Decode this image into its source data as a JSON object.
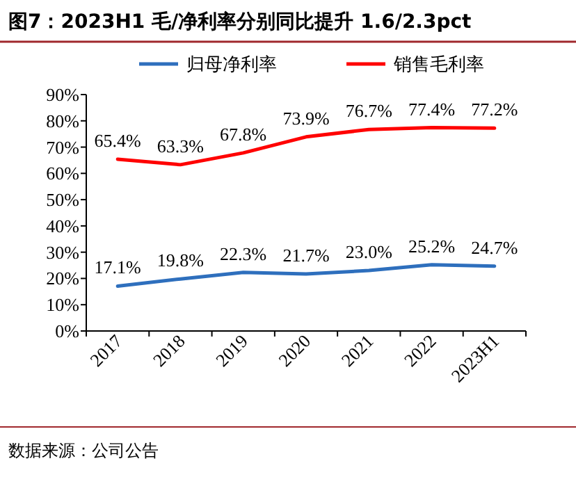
{
  "chart_data": {
    "type": "line",
    "title": "图7：2023H1 毛/净利率分别同比提升 1.6/2.3pct",
    "categories": [
      "2017",
      "2018",
      "2019",
      "2020",
      "2021",
      "2022",
      "2023H1"
    ],
    "series": [
      {
        "name": "归母净利率",
        "color": "#2e6fbd",
        "values": [
          17.1,
          19.8,
          22.3,
          21.7,
          23.0,
          25.2,
          24.7
        ],
        "value_labels": [
          "17.1%",
          "19.8%",
          "22.3%",
          "21.7%",
          "23.0%",
          "25.2%",
          "24.7%"
        ]
      },
      {
        "name": "销售毛利率",
        "color": "#ff0000",
        "values": [
          65.4,
          63.3,
          67.8,
          73.9,
          76.7,
          77.4,
          77.2
        ],
        "value_labels": [
          "65.4%",
          "63.3%",
          "67.8%",
          "73.9%",
          "76.7%",
          "77.4%",
          "77.2%"
        ]
      }
    ],
    "ylim": [
      0,
      90
    ],
    "yticks": [
      {
        "value": 0,
        "label": "0%"
      },
      {
        "value": 10,
        "label": "10%"
      },
      {
        "value": 20,
        "label": "20%"
      },
      {
        "value": 30,
        "label": "30%"
      },
      {
        "value": 40,
        "label": "40%"
      },
      {
        "value": 50,
        "label": "50%"
      },
      {
        "value": 60,
        "label": "60%"
      },
      {
        "value": 70,
        "label": "70%"
      },
      {
        "value": 80,
        "label": "80%"
      },
      {
        "value": 90,
        "label": "90%"
      }
    ],
    "legend": "top",
    "marker": "none",
    "line_style": "solid",
    "annotations": [
      "数据来源：公司公告"
    ]
  }
}
